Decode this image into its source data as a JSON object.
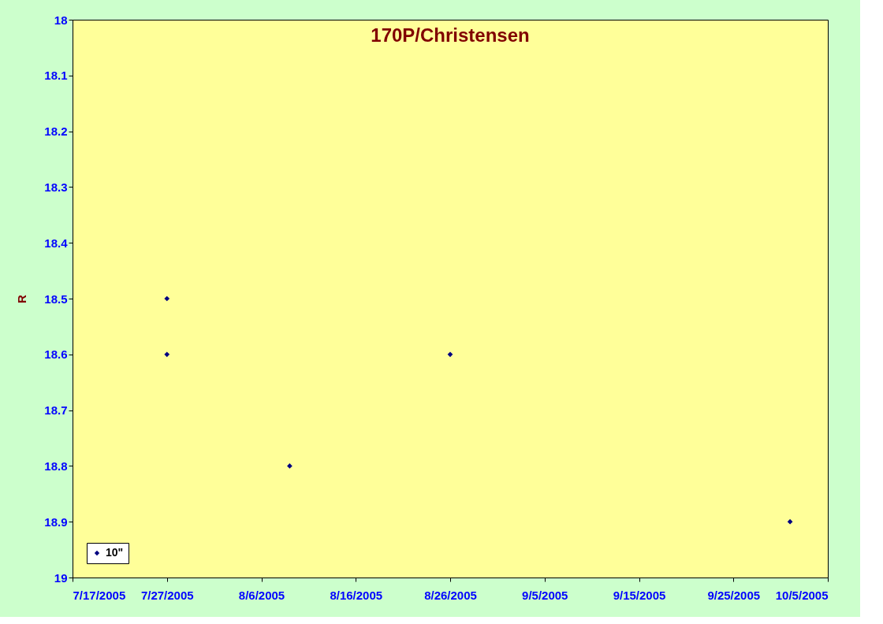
{
  "chart_data": {
    "type": "scatter",
    "title": "170P/Christensen",
    "ylabel": "R",
    "x": [
      "2005-07-27",
      "2005-07-27",
      "2005-08-09",
      "2005-08-26",
      "2005-10-01"
    ],
    "series": [
      {
        "name": "10\"",
        "color": "#000080",
        "values": [
          18.5,
          18.6,
          18.8,
          18.6,
          18.9
        ]
      }
    ],
    "xlim": [
      "2005-07-17",
      "2005-10-05"
    ],
    "xticks": [
      {
        "value": "2005-07-17",
        "label": "7/17/2005"
      },
      {
        "value": "2005-07-27",
        "label": "7/27/2005"
      },
      {
        "value": "2005-08-06",
        "label": "8/6/2005"
      },
      {
        "value": "2005-08-16",
        "label": "8/16/2005"
      },
      {
        "value": "2005-08-26",
        "label": "8/26/2005"
      },
      {
        "value": "2005-09-05",
        "label": "9/5/2005"
      },
      {
        "value": "2005-09-15",
        "label": "9/15/2005"
      },
      {
        "value": "2005-09-25",
        "label": "9/25/2005"
      },
      {
        "value": "2005-10-05",
        "label": "10/5/2005"
      }
    ],
    "ylim": [
      19,
      18
    ],
    "yticks": [
      {
        "value": 18,
        "label": "18"
      },
      18.1,
      18.2,
      18.3,
      18.4,
      18.5,
      18.6,
      18.7,
      18.8,
      18.9,
      {
        "value": 19,
        "label": "19"
      }
    ],
    "marker": "diamond",
    "legend": "bottom left",
    "grid": false
  }
}
